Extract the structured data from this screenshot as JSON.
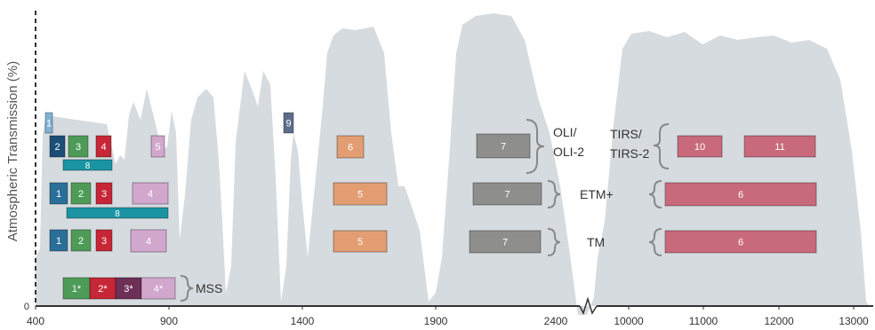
{
  "axes": {
    "ylabel": "Atmospheric Transmission (%)",
    "y_zero": "0",
    "x_ticks_left": [
      "400",
      "900",
      "1400",
      "1900",
      "2400"
    ],
    "x_ticks_right": [
      "10000",
      "11000",
      "12000",
      "13000"
    ]
  },
  "colors": {
    "transmission": "#d6dbdf",
    "blue": "#2a6f98",
    "light_blue": "#7fb2d6",
    "dark_blue": "#1c4e77",
    "green": "#4e9b57",
    "red": "#c72636",
    "violet": "#d2a7cd",
    "orange": "#e29d72",
    "grey": "#8e8f8d",
    "teal": "#1a94a3",
    "rose": "#c86a7b",
    "slate": "#5f6d8c",
    "plum": "#6e2f56"
  },
  "sensors": {
    "oli": "OLI/\nOLI-2",
    "tirs": "TIRS/\nTIRS-2",
    "etm": "ETM+",
    "tm": "TM",
    "mss": "MSS"
  },
  "bands": {
    "oli": [
      "1",
      "2",
      "3",
      "4",
      "5",
      "6",
      "7",
      "8",
      "9"
    ],
    "tirs": [
      "10",
      "11"
    ],
    "etm": [
      "1",
      "2",
      "3",
      "4",
      "5",
      "7",
      "8",
      "6"
    ],
    "tm": [
      "1",
      "2",
      "3",
      "4",
      "5",
      "7",
      "6"
    ],
    "mss": [
      "1*",
      "2*",
      "3*",
      "4*"
    ]
  }
}
